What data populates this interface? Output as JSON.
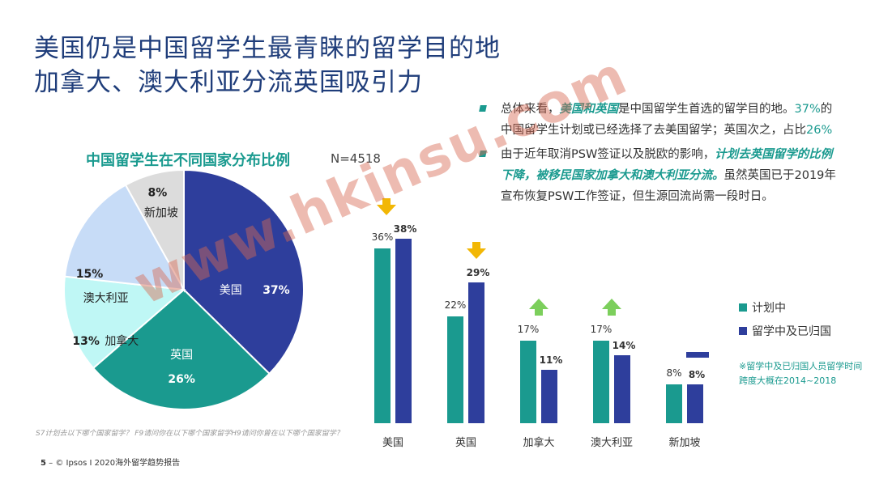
{
  "title": {
    "line1": "美国仍是中国留学生最青睐的留学目的地",
    "line2": "加拿大、澳大利亚分流英国吸引力"
  },
  "pie_title": "中国留学生在不同国家分布比例",
  "n_label": "N=4518",
  "bullets": [
    {
      "segments": [
        {
          "text": "总体来看，",
          "style": "normal"
        },
        {
          "text": "美国和英国",
          "style": "hl-i"
        },
        {
          "text": "是中国留学生首选的留学目的地。",
          "style": "normal"
        },
        {
          "text": "37%",
          "style": "hl"
        },
        {
          "text": "的中国留学生计划或已经选择了去美国留学；英国次之，占比",
          "style": "normal"
        },
        {
          "text": "26%",
          "style": "hl"
        }
      ]
    },
    {
      "segments": [
        {
          "text": "由于近年取消PSW签证以及脱欧的影响，",
          "style": "normal"
        },
        {
          "text": "计划去英国留学的比例下降，被移民国家加拿大和澳大利亚分流。",
          "style": "hl-i"
        },
        {
          "text": "虽然英国已于2019年宣布恢复PSW工作签证，但生源回流尚需一段时日。",
          "style": "normal"
        }
      ]
    }
  ],
  "legend": {
    "planned": "计划中",
    "studying": "留学中及已归国"
  },
  "note": "※留学中及已归国人员留学时间跨度大概在2014~2018",
  "question_text": "S7计划去以下哪个国家留学？ F9请问你在以下哪个国家留学H9请问你曾在以下哪个国家留学？",
  "footer": {
    "page": "5",
    "text": "– © Ipsos I 2020海外留学趋势报告"
  },
  "watermark": "www.hkinsu.com",
  "colors": {
    "teal": "#1a9a8f",
    "navy": "#2e3e9c",
    "title_blue": "#1f3d7a",
    "arrow_down": "#f2b705",
    "arrow_up": "#7ccf5c"
  },
  "chart_data": [
    {
      "type": "pie",
      "title": "中国留学生在不同国家分布比例",
      "categories": [
        "美国",
        "英国",
        "加拿大",
        "澳大利亚",
        "新加坡"
      ],
      "values": [
        37,
        26,
        13,
        15,
        8
      ],
      "value_labels": [
        "37%",
        "26%",
        "13%",
        "15%",
        "8%"
      ],
      "colors": [
        "#2e3e9c",
        "#1a9a8f",
        "#bff7f5",
        "#c7dcf7",
        "#dcdcdc"
      ]
    },
    {
      "type": "bar",
      "categories": [
        "美国",
        "英国",
        "加拿大",
        "澳大利亚",
        "新加坡"
      ],
      "series": [
        {
          "name": "计划中",
          "values": [
            36,
            22,
            17,
            17,
            8
          ],
          "color": "#1a9a8f"
        },
        {
          "name": "留学中及已归国",
          "values": [
            38,
            29,
            11,
            14,
            8
          ],
          "color": "#2e3e9c"
        }
      ],
      "trend": [
        "down",
        "down",
        "up",
        "up",
        "flat"
      ],
      "ylim": [
        0,
        40
      ]
    }
  ]
}
